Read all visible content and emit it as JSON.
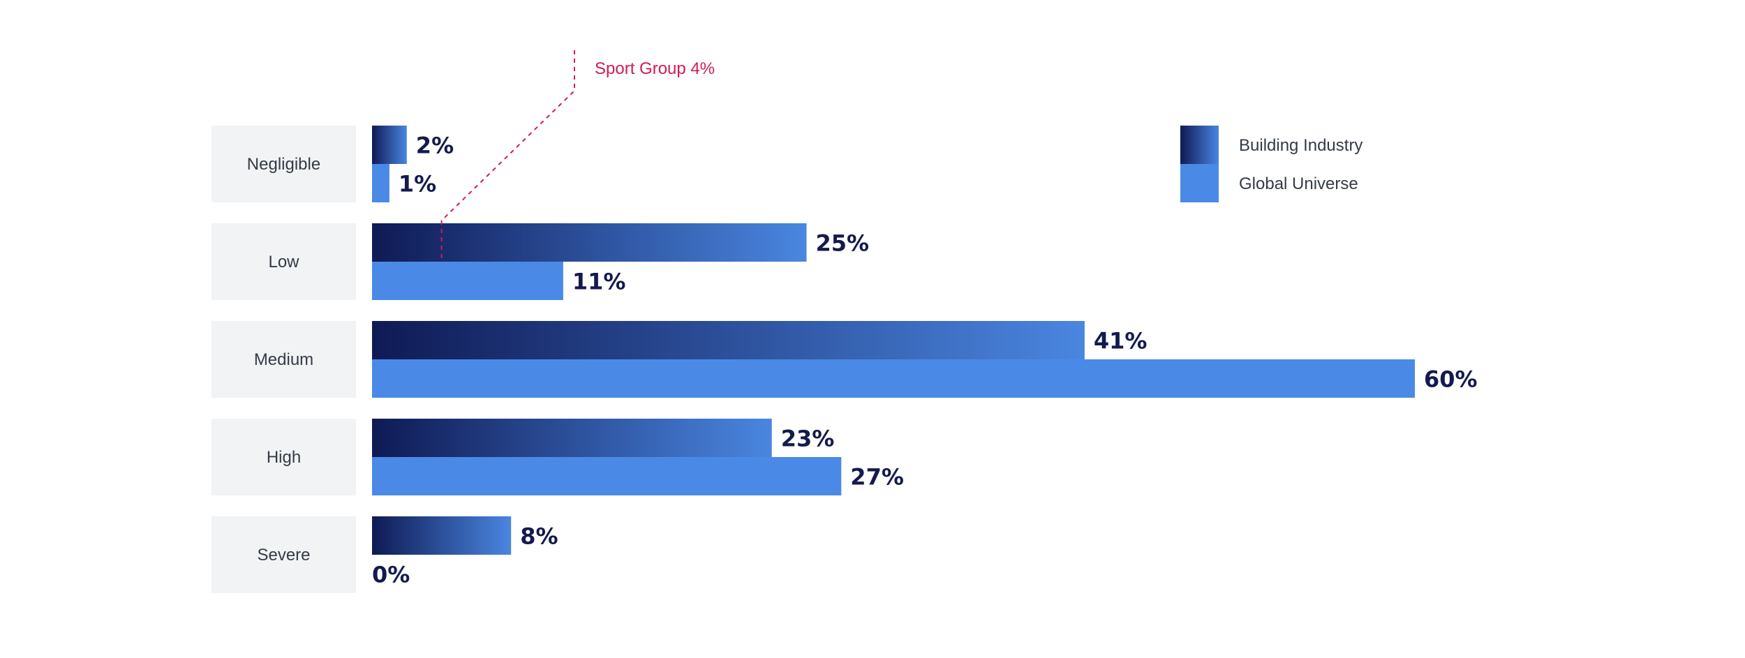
{
  "chart_data": {
    "type": "bar",
    "orientation": "horizontal",
    "categories": [
      "Negligible",
      "Low",
      "Medium",
      "High",
      "Severe"
    ],
    "series": [
      {
        "name": "Building Industry",
        "values": [
          2,
          25,
          41,
          23,
          8
        ],
        "labels": [
          "2%",
          "25%",
          "41%",
          "23%",
          "8%"
        ]
      },
      {
        "name": "Global Universe",
        "values": [
          1,
          11,
          60,
          27,
          0
        ],
        "labels": [
          "1%",
          "11%",
          "60%",
          "27%",
          "0%"
        ]
      }
    ],
    "unit": "%",
    "xlim": [
      0,
      60
    ],
    "legend_position": "top-right",
    "grid": false,
    "annotation": {
      "text": "Sport Group 4%",
      "category": "Low",
      "value": 4
    },
    "colors": {
      "building_dark": "#0f1a55",
      "building_light": "#4a86e0",
      "global": "#4a8ae6",
      "category_bg": "#f2f3f5",
      "annotation": "#d11a5a"
    }
  }
}
